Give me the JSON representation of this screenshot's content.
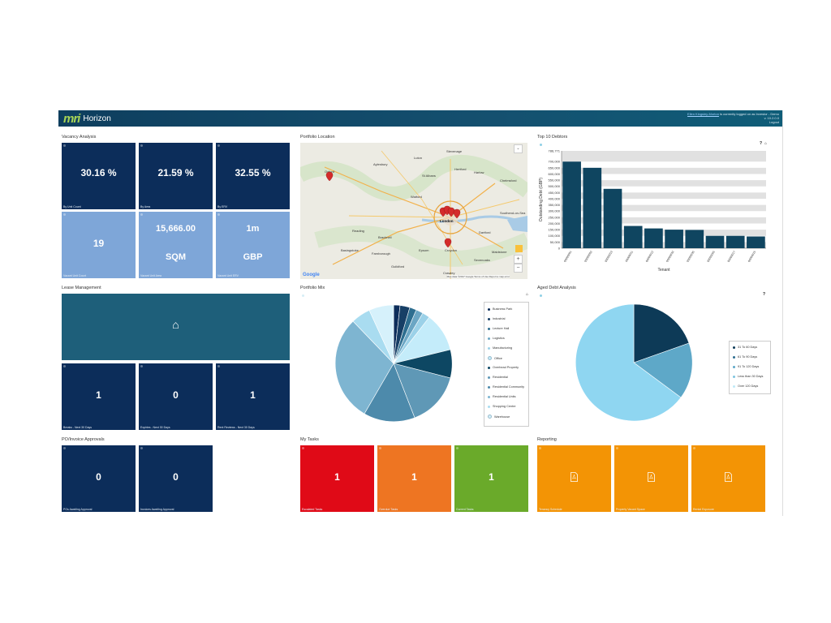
{
  "header": {
    "logo_mark": "mri",
    "app_name": "Horizon",
    "user_line1_link": "Ellen Kingsley-Morton",
    "user_line1_rest": " is currently logged on as  Investor - Demo",
    "version": "v. 10.2.0.0",
    "logout": "Logout"
  },
  "vacancy": {
    "title": "Vacancy Analysis",
    "tiles": [
      {
        "value": "30.16 %",
        "caption": "By Unit Count"
      },
      {
        "value": "21.59 %",
        "caption": "By Area"
      },
      {
        "value": "32.55 %",
        "caption": "By ERV"
      },
      {
        "value": "19",
        "caption": "Vacant Unit Count"
      },
      {
        "value": "15,666.00",
        "value2": "SQM",
        "caption": "Vacant Unit Area"
      },
      {
        "value": "1m",
        "value2": "GBP",
        "caption": "Vacant Unit ERV"
      }
    ]
  },
  "map": {
    "title": "Portfolio Location",
    "places": [
      "Oxford",
      "Luton",
      "Stevenage",
      "St Albans",
      "Hertford",
      "Harlow",
      "Chelmsford",
      "Aylesbury",
      "Watford",
      "London",
      "Reading",
      "Bracknell",
      "Croydon",
      "Crawley",
      "Guildford",
      "Basingstoke",
      "Maidstone",
      "Southend-on-Sea",
      "Dartford",
      "Epsom",
      "Farnborough",
      "Sevenoaks"
    ],
    "attribution": "Map data ©2017 Google   Terms of Use   Report a map error",
    "google_label": "Google",
    "zoom_in": "+",
    "zoom_out": "−"
  },
  "debtors": {
    "title": "Top 10 Debtors",
    "help": "?",
    "home": "⌂"
  },
  "chart_data": {
    "type": "bar",
    "title": "",
    "xlabel": "Tenant",
    "ylabel": "Outstanding Debt (GBP)",
    "ylim": [
      0,
      786771
    ],
    "yticks": [
      "786,771",
      "700,000",
      "650,000",
      "600,000",
      "550,000",
      "500,000",
      "450,000",
      "400,000",
      "350,000",
      "300,000",
      "250,000",
      "200,000",
      "150,000",
      "100,000",
      "50,000",
      "0"
    ],
    "categories": [
      "00000001",
      "00000002",
      "00000013",
      "00000011",
      "00000012",
      "00000032",
      "00000035",
      "00000045",
      "00000017",
      "00000015"
    ],
    "values": [
      700000,
      650000,
      480000,
      180000,
      160000,
      150000,
      148000,
      100000,
      100000,
      95000
    ]
  },
  "lease": {
    "title": "Lease Management",
    "home_icon": "⌂",
    "tiles": [
      {
        "value": "1",
        "caption": "Breaks - Next 30 Days"
      },
      {
        "value": "0",
        "caption": "Expiries - Next 30 Days"
      },
      {
        "value": "1",
        "caption": "Rent Reviews - Next 30 Days"
      }
    ]
  },
  "portfolio_mix": {
    "title": "Portfolio Mix",
    "home": "⌂",
    "legend": [
      "Business Park",
      "Industrial",
      "Lecture Hall",
      "Logistics",
      "Manufacturing",
      "Office",
      "Overhead Property",
      "Residential",
      "Residential Community",
      "Residential Units",
      "Shopping Centre",
      "Warehouse"
    ]
  },
  "aged_debt": {
    "title": "Aged Debt Analysis",
    "help": "?",
    "legend": [
      "31 To 60 Days",
      "61 To 90 Days",
      "91 To 120 Days",
      "Less than 30 Days",
      "Over 120 Days"
    ]
  },
  "po": {
    "title": "PO/Invoice Approvals",
    "tiles": [
      {
        "value": "0",
        "caption": "POs Awaiting Approval"
      },
      {
        "value": "0",
        "caption": "Invoices Awaiting Approval"
      }
    ]
  },
  "tasks": {
    "title": "My Tasks",
    "tiles": [
      {
        "value": "1",
        "caption": "Escalated Tasks"
      },
      {
        "value": "1",
        "caption": "Overdue Tasks"
      },
      {
        "value": "1",
        "caption": "Current Tasks"
      }
    ]
  },
  "reporting": {
    "title": "Reporting",
    "tiles": [
      {
        "caption": "Tenancy Schedule"
      },
      {
        "caption": "Property Vacant Space"
      },
      {
        "caption": "Rental Exposure"
      }
    ]
  },
  "colors": {
    "dark_tile": "#0c2d5a",
    "light_tile": "#7ea6d8",
    "teal_tile": "#1e5f7a",
    "bar": "#0f4560",
    "red": "#e00a17",
    "orange": "#ee7522",
    "green": "#6aaa2a",
    "amber": "#f39405"
  }
}
